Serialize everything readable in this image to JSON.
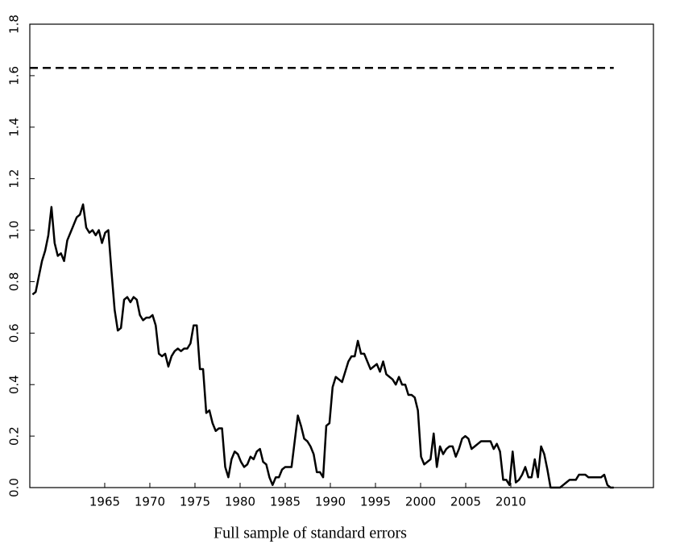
{
  "chart_data": {
    "type": "line",
    "xlabel": "Full sample of standard errors",
    "xlim": [
      1956.7,
      2025.8
    ],
    "xticks": [
      1965,
      1970,
      1975,
      1980,
      1985,
      1990,
      1995,
      2000,
      2005,
      2010
    ],
    "ylim": [
      0,
      1.8
    ],
    "yticks": [
      {
        "value": 0,
        "label": "0.0"
      },
      0.2,
      0.4,
      0.6,
      0.8,
      {
        "value": 1,
        "label": "1.0"
      },
      1.2,
      1.4,
      1.6,
      1.8
    ],
    "color": "#000000",
    "reference_line": {
      "value": 1.63,
      "style": "dashed"
    },
    "x": [
      1957,
      1957.35,
      1957.7,
      1958.05,
      1958.4,
      1958.75,
      1959.1,
      1959.45,
      1959.8,
      1960.15,
      1960.5,
      1960.85,
      1961.2,
      1961.55,
      1961.9,
      1962.25,
      1962.6,
      1962.95,
      1963.3,
      1963.65,
      1964,
      1964.35,
      1964.7,
      1965.05,
      1965.4,
      1965.75,
      1966.1,
      1966.45,
      1966.8,
      1967.15,
      1967.5,
      1967.85,
      1968.2,
      1968.55,
      1968.9,
      1969.25,
      1969.6,
      1969.95,
      1970.3,
      1970.65,
      1971,
      1971.35,
      1971.7,
      1972.05,
      1972.4,
      1972.75,
      1973.1,
      1973.45,
      1973.8,
      1974.15,
      1974.5,
      1974.85,
      1975.2,
      1975.55,
      1975.9,
      1976.25,
      1976.6,
      1976.95,
      1977.3,
      1977.65,
      1978,
      1978.35,
      1978.7,
      1979.05,
      1979.4,
      1979.75,
      1980.1,
      1980.45,
      1980.8,
      1981.15,
      1981.5,
      1981.85,
      1982.2,
      1982.55,
      1982.9,
      1983.25,
      1983.6,
      1983.95,
      1984.3,
      1984.65,
      1985,
      1985.35,
      1985.7,
      1986.05,
      1986.4,
      1986.75,
      1987.1,
      1987.45,
      1987.8,
      1988.15,
      1988.5,
      1988.85,
      1989.2,
      1989.55,
      1989.9,
      1990.25,
      1990.6,
      1990.95,
      1991.3,
      1991.65,
      1992,
      1992.35,
      1992.7,
      1993.05,
      1993.4,
      1993.75,
      1994.1,
      1994.45,
      1994.8,
      1995.15,
      1995.5,
      1995.85,
      1996.2,
      1996.55,
      1996.9,
      1997.25,
      1997.6,
      1997.95,
      1998.3,
      1998.65,
      1999,
      1999.35,
      1999.7,
      2000.05,
      2000.4,
      2000.75,
      2001.1,
      2001.45,
      2001.8,
      2002.15,
      2002.5,
      2002.85,
      2003.2,
      2003.55,
      2003.9,
      2004.25,
      2004.6,
      2004.95,
      2005.3,
      2005.65,
      2006,
      2006.35,
      2006.7,
      2007.05,
      2007.4,
      2007.75,
      2008.1,
      2008.45,
      2008.8,
      2009.15,
      2009.5,
      2009.85,
      2010.2,
      2010.55,
      2010.9,
      2011.25,
      2011.6,
      2011.95,
      2012.3,
      2012.65,
      2013,
      2013.35,
      2013.7,
      2014.05,
      2014.4,
      2014.75,
      2015.1,
      2015.45,
      2015.8,
      2016.15,
      2016.5,
      2016.85,
      2017.2,
      2017.55,
      2017.9,
      2018.25,
      2018.6,
      2018.95,
      2019.3,
      2019.65,
      2020,
      2020.35,
      2020.7,
      2021.05,
      2021.4
    ],
    "values": [
      0.75,
      0.76,
      0.82,
      0.88,
      0.92,
      0.98,
      1.09,
      0.95,
      0.9,
      0.91,
      0.88,
      0.96,
      0.99,
      1.02,
      1.05,
      1.06,
      1.1,
      1.01,
      0.99,
      1.0,
      0.98,
      1.0,
      0.95,
      0.99,
      1.0,
      0.84,
      0.69,
      0.61,
      0.62,
      0.73,
      0.74,
      0.72,
      0.74,
      0.73,
      0.67,
      0.65,
      0.66,
      0.66,
      0.67,
      0.63,
      0.52,
      0.51,
      0.52,
      0.47,
      0.51,
      0.53,
      0.54,
      0.53,
      0.54,
      0.54,
      0.56,
      0.63,
      0.63,
      0.46,
      0.46,
      0.29,
      0.3,
      0.25,
      0.22,
      0.23,
      0.23,
      0.08,
      0.04,
      0.11,
      0.14,
      0.13,
      0.1,
      0.08,
      0.09,
      0.12,
      0.11,
      0.14,
      0.15,
      0.1,
      0.09,
      0.04,
      0.01,
      0.04,
      0.04,
      0.07,
      0.08,
      0.08,
      0.08,
      0.18,
      0.28,
      0.24,
      0.19,
      0.18,
      0.16,
      0.13,
      0.06,
      0.06,
      0.04,
      0.24,
      0.25,
      0.39,
      0.43,
      0.42,
      0.41,
      0.45,
      0.49,
      0.51,
      0.51,
      0.57,
      0.52,
      0.52,
      0.49,
      0.46,
      0.47,
      0.48,
      0.45,
      0.49,
      0.44,
      0.43,
      0.42,
      0.4,
      0.43,
      0.4,
      0.4,
      0.36,
      0.36,
      0.35,
      0.3,
      0.12,
      0.09,
      0.1,
      0.11,
      0.21,
      0.08,
      0.16,
      0.13,
      0.15,
      0.16,
      0.16,
      0.12,
      0.15,
      0.19,
      0.2,
      0.19,
      0.15,
      0.16,
      0.17,
      0.18,
      0.18,
      0.18,
      0.18,
      0.15,
      0.17,
      0.14,
      0.03,
      0.03,
      0.01,
      0.14,
      0.02,
      0.03,
      0.05,
      0.08,
      0.04,
      0.04,
      0.11,
      0.04,
      0.16,
      0.13,
      0.07,
      0.0,
      0.0,
      0.0,
      0.0,
      0.01,
      0.02,
      0.03,
      0.03,
      0.03,
      0.05,
      0.05,
      0.05,
      0.04,
      0.04,
      0.04,
      0.04,
      0.04,
      0.05,
      0.01,
      0.0,
      0.0
    ]
  }
}
